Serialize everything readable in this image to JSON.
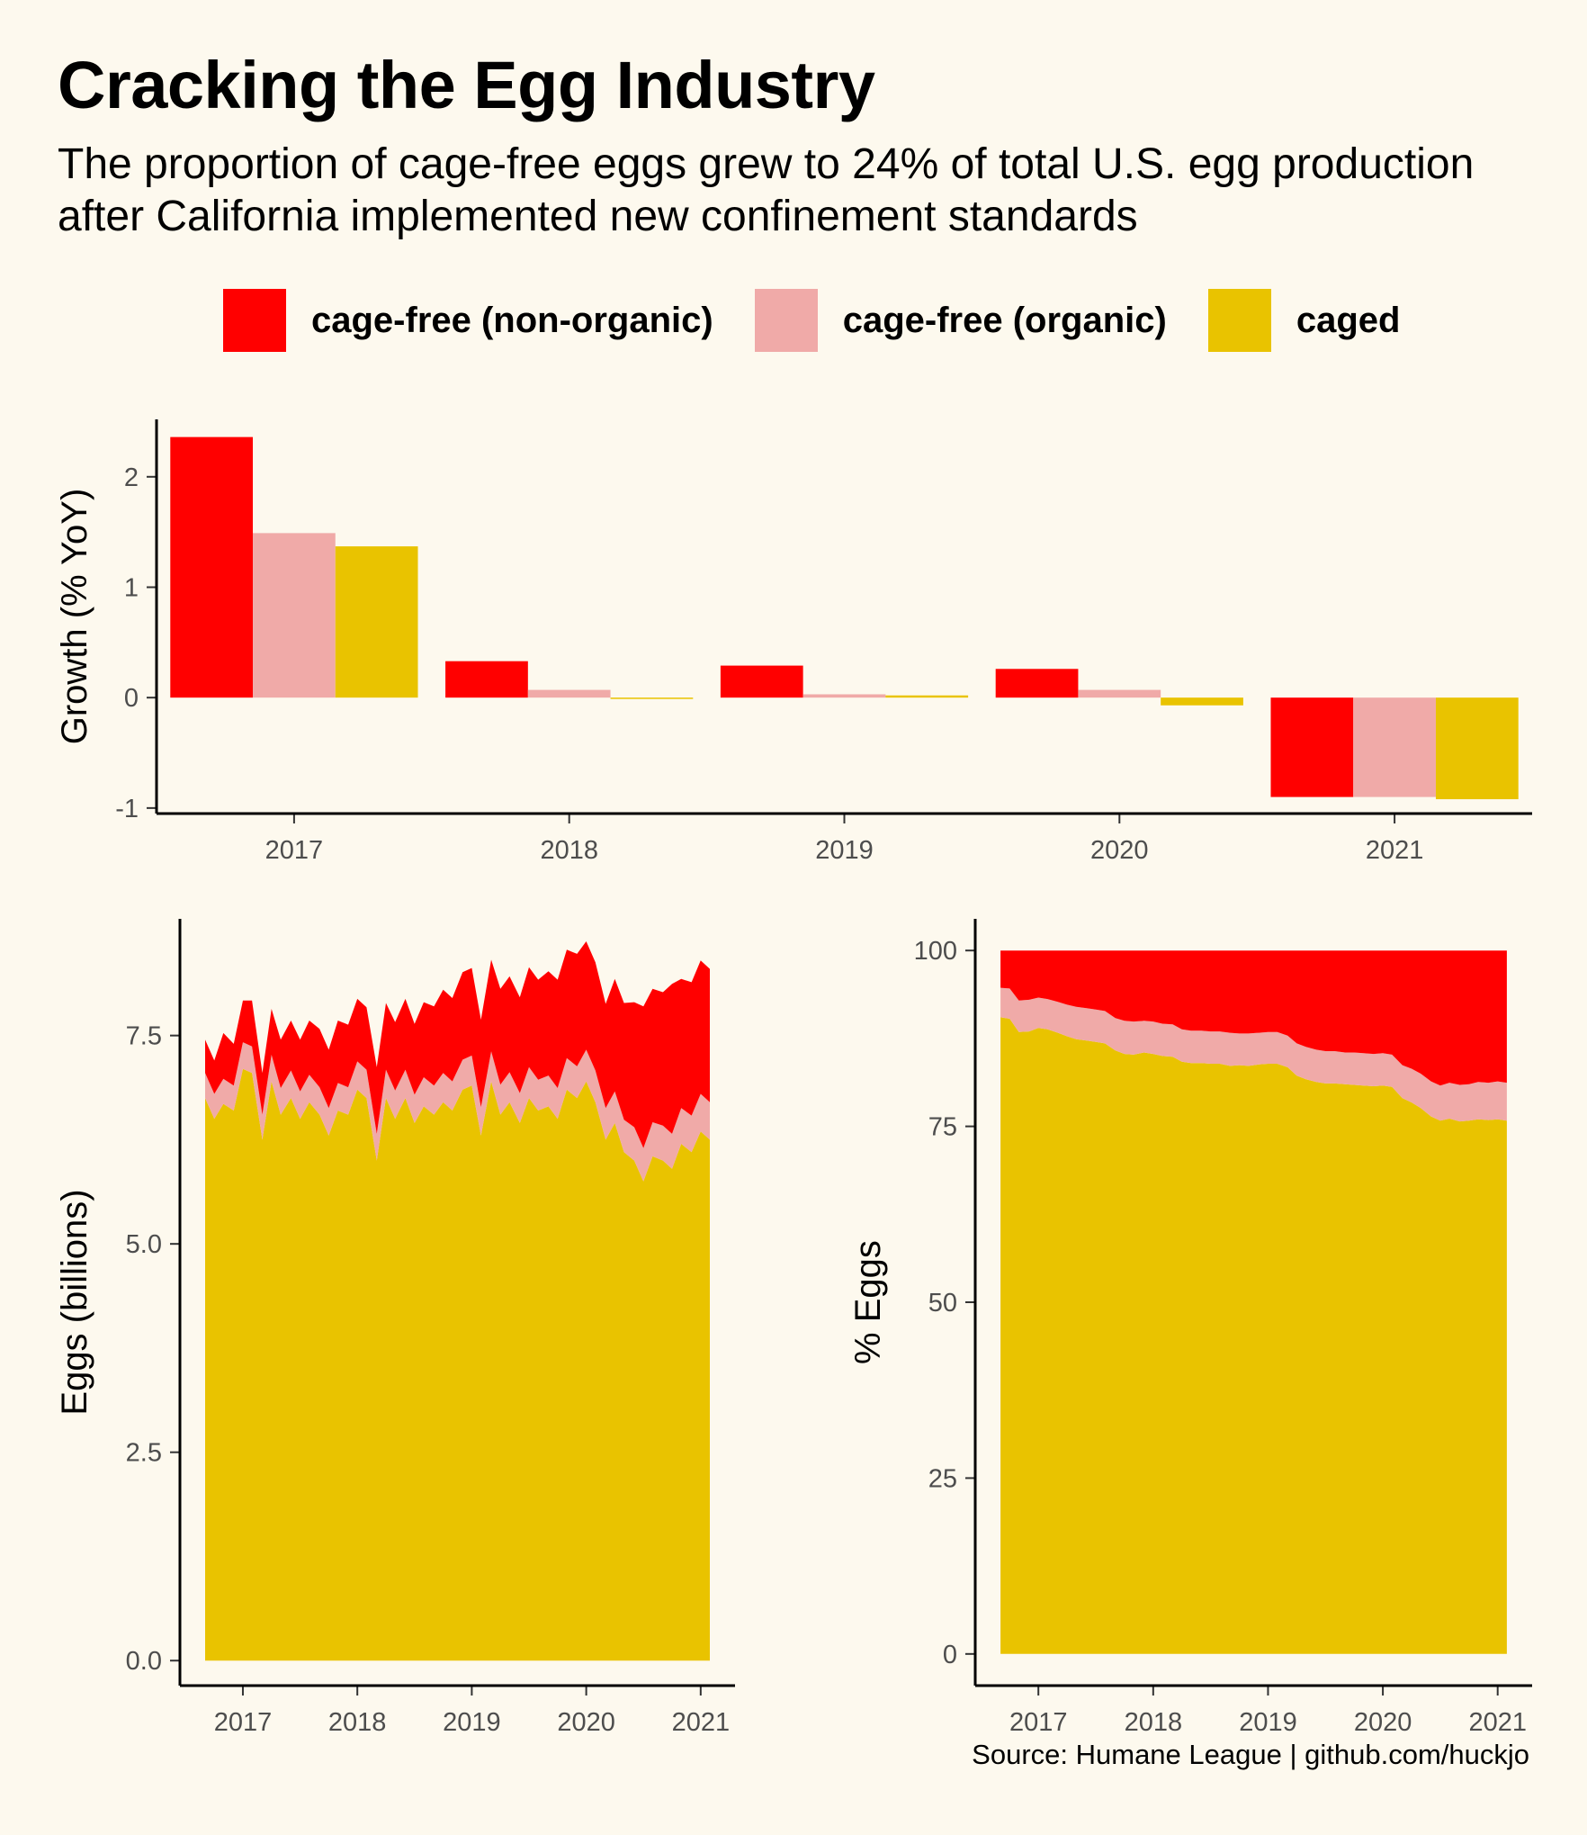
{
  "title": "Cracking the Egg Industry",
  "subtitle": "The proportion of cage-free eggs grew to 24% of total U.S. egg production after California implemented new confinement standards",
  "caption": "Source: Humane League | github.com/huckjo",
  "colors": {
    "background": "#fdf9ee",
    "cage_free_non_organic": "#ff0000",
    "cage_free_organic": "#f0aaa8",
    "caged": "#e9c300"
  },
  "legend": [
    {
      "label": "cage-free (non-organic)",
      "color": "#ff0000"
    },
    {
      "label": "cage-free (organic)",
      "color": "#f0aaa8"
    },
    {
      "label": "caged",
      "color": "#e9c300"
    }
  ],
  "chart_data": [
    {
      "type": "bar",
      "ylabel": "Growth (% YoY)",
      "xlabel": "",
      "categories": [
        "2017",
        "2018",
        "2019",
        "2020",
        "2021"
      ],
      "ylim": [
        -1.05,
        2.52
      ],
      "yticks": [
        -1,
        0,
        1,
        2
      ],
      "series": [
        {
          "name": "cage-free (non-organic)",
          "values": [
            2.36,
            0.33,
            0.29,
            0.26,
            -0.9
          ]
        },
        {
          "name": "cage-free (organic)",
          "values": [
            1.49,
            0.07,
            0.03,
            0.07,
            -0.9
          ]
        },
        {
          "name": "caged",
          "values": [
            1.37,
            -0.01,
            0.02,
            -0.07,
            -0.92
          ]
        }
      ]
    },
    {
      "type": "area",
      "stacked": true,
      "ylabel": "Eggs (billions)",
      "xlabel": "",
      "xlim": [
        2016.45,
        2021.3
      ],
      "ylim": [
        -0.3,
        8.9
      ],
      "xticks": [
        2017,
        2018,
        2019,
        2020,
        2021
      ],
      "yticks": [
        0,
        2.5,
        5,
        7.5
      ],
      "ytick_labels": [
        "0.0",
        "2.5",
        "5.0",
        "7.5"
      ],
      "x": [
        2016.67,
        2016.75,
        2016.83,
        2016.92,
        2017.0,
        2017.08,
        2017.17,
        2017.25,
        2017.33,
        2017.42,
        2017.5,
        2017.58,
        2017.67,
        2017.75,
        2017.83,
        2017.92,
        2018.0,
        2018.08,
        2018.17,
        2018.25,
        2018.33,
        2018.42,
        2018.5,
        2018.58,
        2018.67,
        2018.75,
        2018.83,
        2018.92,
        2019.0,
        2019.08,
        2019.17,
        2019.25,
        2019.33,
        2019.42,
        2019.5,
        2019.58,
        2019.67,
        2019.75,
        2019.83,
        2019.92,
        2020.0,
        2020.08,
        2020.17,
        2020.25,
        2020.33,
        2020.42,
        2020.5,
        2020.58,
        2020.67,
        2020.75,
        2020.83,
        2020.92,
        2021.0,
        2021.08
      ],
      "series": [
        {
          "name": "caged",
          "values": [
            6.75,
            6.5,
            6.68,
            6.6,
            7.1,
            7.05,
            6.25,
            6.95,
            6.55,
            6.75,
            6.5,
            6.7,
            6.55,
            6.3,
            6.6,
            6.55,
            6.85,
            6.75,
            6.0,
            6.75,
            6.5,
            6.75,
            6.45,
            6.65,
            6.55,
            6.7,
            6.6,
            6.85,
            6.9,
            6.3,
            6.95,
            6.55,
            6.7,
            6.45,
            6.75,
            6.6,
            6.65,
            6.5,
            6.85,
            6.75,
            6.95,
            6.7,
            6.25,
            6.45,
            6.1,
            6.0,
            5.75,
            6.05,
            6.0,
            5.9,
            6.2,
            6.1,
            6.35,
            6.25
          ]
        },
        {
          "name": "cage-free (organic)",
          "values": [
            0.3,
            0.3,
            0.3,
            0.3,
            0.32,
            0.32,
            0.3,
            0.32,
            0.32,
            0.33,
            0.33,
            0.33,
            0.33,
            0.33,
            0.33,
            0.33,
            0.34,
            0.34,
            0.32,
            0.34,
            0.34,
            0.34,
            0.34,
            0.35,
            0.35,
            0.35,
            0.35,
            0.36,
            0.36,
            0.34,
            0.36,
            0.36,
            0.36,
            0.36,
            0.37,
            0.37,
            0.37,
            0.37,
            0.38,
            0.38,
            0.38,
            0.38,
            0.38,
            0.38,
            0.39,
            0.4,
            0.4,
            0.41,
            0.42,
            0.42,
            0.43,
            0.44,
            0.45,
            0.45
          ]
        },
        {
          "name": "cage-free (non-organic)",
          "values": [
            0.4,
            0.4,
            0.55,
            0.5,
            0.5,
            0.55,
            0.5,
            0.55,
            0.58,
            0.6,
            0.62,
            0.65,
            0.7,
            0.7,
            0.75,
            0.75,
            0.75,
            0.75,
            0.8,
            0.8,
            0.82,
            0.85,
            0.85,
            0.9,
            0.95,
            1.0,
            1.0,
            1.05,
            1.05,
            1.05,
            1.1,
            1.15,
            1.15,
            1.15,
            1.2,
            1.2,
            1.25,
            1.3,
            1.3,
            1.35,
            1.3,
            1.3,
            1.25,
            1.35,
            1.4,
            1.5,
            1.7,
            1.6,
            1.6,
            1.8,
            1.55,
            1.6,
            1.6,
            1.6
          ]
        }
      ]
    },
    {
      "type": "area",
      "stacked": true,
      "ylabel": "% Eggs",
      "xlabel": "",
      "xlim": [
        2016.45,
        2021.3
      ],
      "ylim": [
        -4.5,
        104.5
      ],
      "xticks": [
        2017,
        2018,
        2019,
        2020,
        2021
      ],
      "yticks": [
        0,
        25,
        50,
        75,
        100
      ],
      "ytick_labels": [
        "0",
        "25",
        "50",
        "75",
        "100"
      ],
      "x": [
        2016.67,
        2016.75,
        2016.83,
        2016.92,
        2017.0,
        2017.08,
        2017.17,
        2017.25,
        2017.33,
        2017.42,
        2017.5,
        2017.58,
        2017.67,
        2017.75,
        2017.83,
        2017.92,
        2018.0,
        2018.08,
        2018.17,
        2018.25,
        2018.33,
        2018.42,
        2018.5,
        2018.58,
        2018.67,
        2018.75,
        2018.83,
        2018.92,
        2019.0,
        2019.08,
        2019.17,
        2019.25,
        2019.33,
        2019.42,
        2019.5,
        2019.58,
        2019.67,
        2019.75,
        2019.83,
        2019.92,
        2020.0,
        2020.08,
        2020.17,
        2020.25,
        2020.33,
        2020.42,
        2020.5,
        2020.58,
        2020.67,
        2020.75,
        2020.83,
        2020.92,
        2021.0,
        2021.08
      ],
      "series": [
        {
          "name": "caged",
          "values": [
            90.5,
            90.3,
            88.4,
            88.5,
            89.0,
            88.8,
            88.3,
            87.8,
            87.4,
            87.2,
            87.0,
            86.8,
            85.8,
            85.3,
            85.2,
            85.5,
            85.3,
            85.0,
            84.9,
            84.2,
            84.0,
            84.0,
            83.9,
            83.9,
            83.6,
            83.7,
            83.6,
            83.8,
            83.9,
            83.9,
            83.4,
            82.2,
            81.7,
            81.3,
            81.1,
            81.1,
            81.0,
            80.9,
            80.8,
            80.7,
            80.8,
            80.6,
            79.0,
            78.4,
            77.6,
            76.4,
            75.8,
            76.1,
            75.7,
            75.8,
            76.0,
            75.9,
            76.0,
            75.8
          ]
        },
        {
          "name": "cage-free (organic)",
          "values": [
            4.2,
            4.3,
            4.5,
            4.5,
            4.3,
            4.3,
            4.4,
            4.5,
            4.6,
            4.6,
            4.6,
            4.6,
            4.6,
            4.7,
            4.7,
            4.5,
            4.6,
            4.6,
            4.6,
            4.6,
            4.6,
            4.6,
            4.6,
            4.6,
            4.7,
            4.5,
            4.6,
            4.5,
            4.5,
            4.5,
            4.5,
            4.6,
            4.6,
            4.6,
            4.6,
            4.6,
            4.5,
            4.6,
            4.6,
            4.6,
            4.6,
            4.6,
            4.7,
            4.8,
            4.9,
            5.0,
            5.0,
            5.1,
            5.2,
            5.2,
            5.3,
            5.3,
            5.4,
            5.4
          ]
        },
        {
          "name": "cage-free (non-organic)",
          "values": [
            5.3,
            5.4,
            7.1,
            7.0,
            6.7,
            6.9,
            7.3,
            7.7,
            8.0,
            8.2,
            8.4,
            8.6,
            9.6,
            10.0,
            10.1,
            10.0,
            10.1,
            10.4,
            10.5,
            11.2,
            11.4,
            11.4,
            11.5,
            11.5,
            11.7,
            11.8,
            11.8,
            11.7,
            11.6,
            11.6,
            12.1,
            13.2,
            13.7,
            14.1,
            14.3,
            14.3,
            14.5,
            14.5,
            14.6,
            14.7,
            14.6,
            14.8,
            16.3,
            16.8,
            17.5,
            18.6,
            19.2,
            18.8,
            19.1,
            19.0,
            18.7,
            18.8,
            18.6,
            18.8
          ]
        }
      ]
    }
  ]
}
